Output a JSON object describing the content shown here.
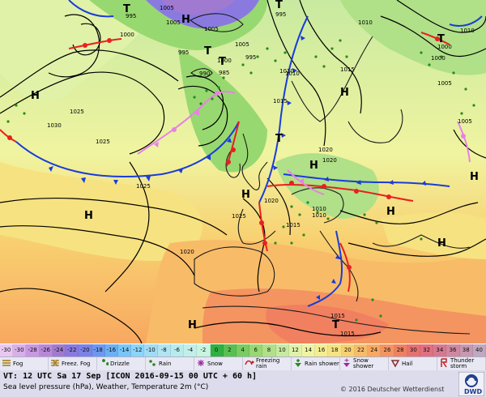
{
  "temperature_scale": [
    {
      "label": "-30",
      "color": "#e8c8f0"
    },
    {
      "label": "-30",
      "color": "#d8b0e8"
    },
    {
      "label": "-28",
      "color": "#c898e0"
    },
    {
      "label": "-26",
      "color": "#b888d8"
    },
    {
      "label": "-24",
      "color": "#a07ad0"
    },
    {
      "label": "-22",
      "color": "#8a7ae0"
    },
    {
      "label": "-20",
      "color": "#7a82e8"
    },
    {
      "label": "-18",
      "color": "#6a98f0"
    },
    {
      "label": "-16",
      "color": "#6ab0f4"
    },
    {
      "label": "-14",
      "color": "#78c6f8"
    },
    {
      "label": "-12",
      "color": "#8cd4f8"
    },
    {
      "label": "-10",
      "color": "#a0dcf4"
    },
    {
      "label": "-8",
      "color": "#b0e4f0"
    },
    {
      "label": "-6",
      "color": "#b8ecec"
    },
    {
      "label": "-4",
      "color": "#c0f0e8"
    },
    {
      "label": "-2",
      "color": "#c8f4e0"
    },
    {
      "label": "0",
      "color": "#30b040"
    },
    {
      "label": "2",
      "color": "#58c050"
    },
    {
      "label": "4",
      "color": "#78cc60"
    },
    {
      "label": "6",
      "color": "#98d870"
    },
    {
      "label": "8",
      "color": "#b0e088"
    },
    {
      "label": "10",
      "color": "#c8eaa0"
    },
    {
      "label": "12",
      "color": "#e0f2a8"
    },
    {
      "label": "14",
      "color": "#f0f4a0"
    },
    {
      "label": "16",
      "color": "#f4ee90"
    },
    {
      "label": "18",
      "color": "#f6e280"
    },
    {
      "label": "20",
      "color": "#f8d070"
    },
    {
      "label": "22",
      "color": "#f8bc68"
    },
    {
      "label": "24",
      "color": "#f8a860"
    },
    {
      "label": "26",
      "color": "#f49460"
    },
    {
      "label": "28",
      "color": "#f08060"
    },
    {
      "label": "30",
      "color": "#e87070"
    },
    {
      "label": "32",
      "color": "#e07080"
    },
    {
      "label": "34",
      "color": "#d87890"
    },
    {
      "label": "36",
      "color": "#d088a0"
    },
    {
      "label": "38",
      "color": "#c898b0"
    },
    {
      "label": "40",
      "color": "#c0a8c0"
    }
  ],
  "legend": [
    {
      "label": "Fog",
      "icon": "fog-icon"
    },
    {
      "label": "Freez. Fog",
      "icon": "freezing-fog-icon"
    },
    {
      "label": "Drizzle",
      "icon": "drizzle-icon"
    },
    {
      "label": "Rain",
      "icon": "rain-icon"
    },
    {
      "label": "Snow",
      "icon": "snow-icon"
    },
    {
      "label": "Freezing rain",
      "icon": "freezing-rain-icon"
    },
    {
      "label": "Rain shower",
      "icon": "rain-shower-icon"
    },
    {
      "label": "Snow shower",
      "icon": "snow-shower-icon"
    },
    {
      "label": "Hail",
      "icon": "hail-icon"
    },
    {
      "label": "Thunder storm",
      "icon": "thunderstorm-icon"
    }
  ],
  "info": {
    "valid_time": "VT: 12 UTC Sa  17 Sep [ICON 2016-09-15  00 UTC + 60 h]",
    "description": "Sea level pressure (hPa), Weather, Temperature 2m (°C)",
    "copyright": "© 2016 Deutscher Wetterdienst",
    "logo_text": "DWD"
  },
  "map": {
    "pressure_labels": [
      "995",
      "1000",
      "1005",
      "1005",
      "995",
      "1010",
      "1005",
      "995",
      "1000",
      "1010",
      "1015",
      "1020",
      "1025",
      "1030",
      "1025",
      "1010",
      "1015",
      "1020",
      "1015",
      "1010",
      "1015",
      "1005",
      "1000",
      "1005",
      "1010",
      "1015",
      "1020",
      "1025",
      "985",
      "990",
      "995",
      "1005",
      "1000",
      "1010",
      "1025",
      "1020"
    ],
    "system_labels": [
      "H",
      "H",
      "H",
      "H",
      "H",
      "H",
      "H",
      "H",
      "H",
      "H",
      "T",
      "T",
      "T",
      "T",
      "T",
      "T",
      "T"
    ],
    "colors": {
      "warm_front": "#e82020",
      "cold_front": "#1a3cd8",
      "occluded_front": "#e880e8",
      "isobar": "#000000",
      "weather": "#2a8a20"
    }
  }
}
